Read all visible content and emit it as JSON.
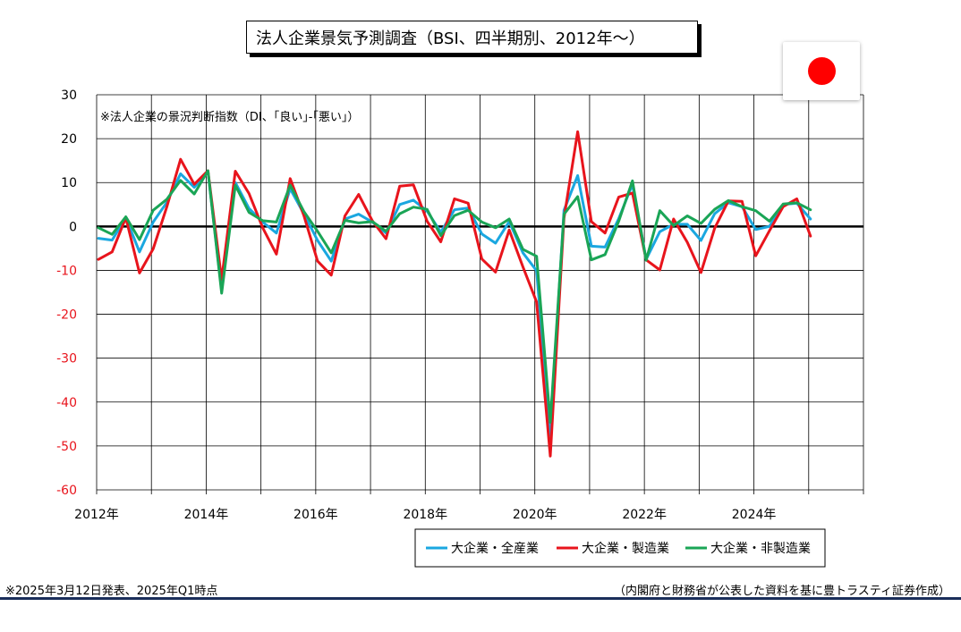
{
  "title": "法人企業景気予測調査（BSI、四半期別、2012年～）",
  "footer": {
    "left": "※2025年3月12日発表、2025年Q1時点",
    "right": "（内閣府と財務省が公表した資料を基に豊トラスティ証券作成）"
  },
  "flag_icon": "japan-flag-icon",
  "chart_data": {
    "type": "line",
    "annotation": "※法人企業の景況判断指数（DI、｢良い｣-｢悪い｣）",
    "ylim": [
      -60,
      30
    ],
    "y_ticks": [
      30,
      20,
      10,
      0,
      -10,
      -20,
      -30,
      -40,
      -50,
      -60
    ],
    "x_ticks": [
      "2012年",
      "2014年",
      "2016年",
      "2018年",
      "2020年",
      "2022年",
      "2024年"
    ],
    "legend_position": "bottom-right",
    "grid": true,
    "x": [
      "2012Q1",
      "2012Q2",
      "2012Q3",
      "2012Q4",
      "2013Q1",
      "2013Q2",
      "2013Q3",
      "2013Q4",
      "2014Q1",
      "2014Q2",
      "2014Q3",
      "2014Q4",
      "2015Q1",
      "2015Q2",
      "2015Q3",
      "2015Q4",
      "2016Q1",
      "2016Q2",
      "2016Q3",
      "2016Q4",
      "2017Q1",
      "2017Q2",
      "2017Q3",
      "2017Q4",
      "2018Q1",
      "2018Q2",
      "2018Q3",
      "2018Q4",
      "2019Q1",
      "2019Q2",
      "2019Q3",
      "2019Q4",
      "2020Q1",
      "2020Q2",
      "2020Q3",
      "2020Q4",
      "2021Q1",
      "2021Q2",
      "2021Q3",
      "2021Q4",
      "2022Q1",
      "2022Q2",
      "2022Q3",
      "2022Q4",
      "2023Q1",
      "2023Q2",
      "2023Q3",
      "2023Q4",
      "2024Q1",
      "2024Q2",
      "2024Q3",
      "2024Q4",
      "2025Q1"
    ],
    "series": [
      {
        "name": "大企業・全産業",
        "color": "#1aa7e0",
        "values": [
          -2.7,
          -3.1,
          2.0,
          -5.8,
          1.0,
          5.5,
          12.0,
          8.9,
          12.5,
          -14.6,
          10.0,
          4.1,
          1.0,
          -1.5,
          8.6,
          2.9,
          -3.2,
          -7.9,
          1.7,
          2.8,
          1.0,
          -1.5,
          5.0,
          6.0,
          3.5,
          -1.3,
          3.8,
          4.2,
          -1.7,
          -3.8,
          1.1,
          -6.0,
          -10.1,
          -47.6,
          3.7,
          11.6,
          -4.5,
          -4.7,
          1.8,
          9.6,
          -7.5,
          -1.2,
          0.5,
          0.5,
          -3.2,
          2.9,
          5.4,
          4.5,
          -0.7,
          0.0,
          5.0,
          5.3,
          1.7
        ]
      },
      {
        "name": "大企業・製造業",
        "color": "#e8141c",
        "values": [
          -7.5,
          -5.8,
          2.0,
          -10.6,
          -5.1,
          4.5,
          15.3,
          9.6,
          12.7,
          -12.1,
          12.6,
          7.5,
          -0.3,
          -6.3,
          10.9,
          2.5,
          -7.9,
          -11.1,
          2.4,
          7.3,
          1.3,
          -2.8,
          9.2,
          9.5,
          1.2,
          -3.5,
          6.3,
          5.3,
          -7.4,
          -10.4,
          -0.8,
          -9.2,
          -17.2,
          -52.3,
          1.9,
          21.6,
          1.1,
          -1.5,
          6.7,
          7.6,
          -7.6,
          -9.9,
          1.7,
          -3.6,
          -10.5,
          -0.4,
          5.8,
          5.7,
          -6.7,
          -1.0,
          4.5,
          6.3,
          -2.2
        ]
      },
      {
        "name": "大企業・非製造業",
        "color": "#1aa556",
        "values": [
          -0.3,
          -1.8,
          2.2,
          -3.0,
          3.7,
          6.2,
          10.5,
          7.4,
          12.7,
          -15.2,
          9.4,
          3.2,
          1.3,
          1.0,
          9.4,
          3.4,
          -1.1,
          -6.0,
          1.4,
          0.8,
          1.1,
          -1.1,
          2.9,
          4.4,
          3.9,
          -2.1,
          2.5,
          3.7,
          1.0,
          -0.3,
          1.7,
          -5.2,
          -6.8,
          -44.6,
          2.8,
          6.8,
          -7.6,
          -6.4,
          1.2,
          10.4,
          -7.7,
          3.6,
          0.2,
          2.4,
          0.7,
          3.9,
          5.9,
          4.5,
          3.6,
          1.2,
          5.1,
          5.4,
          3.8
        ]
      }
    ]
  }
}
